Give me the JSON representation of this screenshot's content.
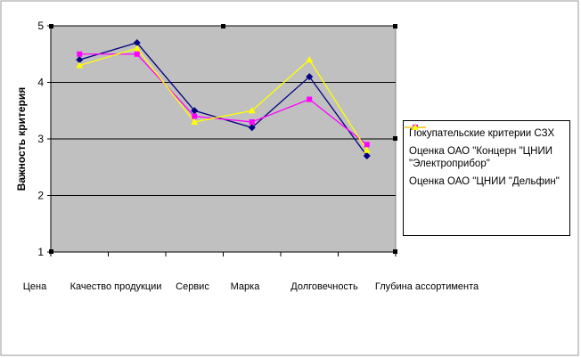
{
  "chart_data": {
    "type": "line",
    "categories": [
      "Цена",
      "Качество продукции",
      "Сервис",
      "Марка",
      "Долговечность",
      "Глубина ассортимента"
    ],
    "ylabel": "Важность критерия",
    "xlabel": "",
    "ylim": [
      1,
      5
    ],
    "yticks": [
      1,
      2,
      3,
      4,
      5
    ],
    "grid": "horizontal",
    "legend_position": "right",
    "plot_background": "#c0c0c0",
    "series": [
      {
        "name": "Покупательские критерии СЗХ",
        "color": "#000080",
        "marker": "diamond",
        "values": [
          4.4,
          4.7,
          3.5,
          3.2,
          4.1,
          2.7
        ]
      },
      {
        "name": "Оценка ОАО \"Концерн \"ЦНИИ \"Электроприбор\"",
        "color": "#ff00ff",
        "marker": "square",
        "values": [
          4.5,
          4.5,
          3.4,
          3.3,
          3.7,
          2.9
        ]
      },
      {
        "name": "Оценка ОАО \"ЦНИИ \"Дельфин\"",
        "color": "#ffff00",
        "marker": "triangle",
        "values": [
          4.3,
          4.6,
          3.3,
          3.5,
          4.4,
          2.8
        ]
      }
    ]
  }
}
